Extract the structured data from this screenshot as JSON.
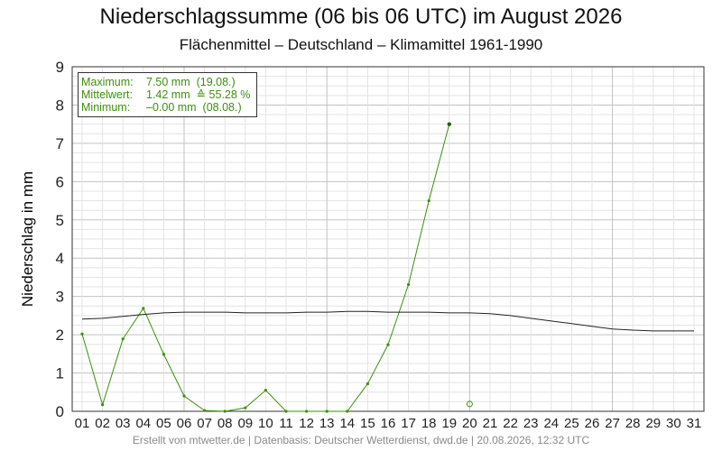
{
  "title": "Niederschlagssumme (06 bis 06 UTC) im August 2026",
  "subtitle": "Flächenmittel – Deutschland – Klimamittel 1961-1990",
  "footer": "Erstellt von mtwetter.de | Datenbasis: Deutscher Wetterdienst, dwd.de | 20.08.2026, 12:32 UTC",
  "infobox": {
    "max_label": "Maximum:",
    "max_value": "7.50 mm",
    "max_date": "(19.08.)",
    "mean_label": "Mittelwert:",
    "mean_value": "1.42 mm",
    "mean_pct": "≙ 55.28 %",
    "min_label": "Minimum:",
    "min_value": "–0.00 mm",
    "min_date": "(08.08.)"
  },
  "colors": {
    "observed": "#3d8f0e",
    "climate": "#222222",
    "grid_minor": "#e4e4e4",
    "grid_major": "#c2c2c2"
  },
  "chart_data": {
    "type": "line",
    "ylabel": "Niederschlag in mm",
    "ylim": [
      0,
      9
    ],
    "xlim": [
      1,
      31
    ],
    "x_ticks": [
      "01",
      "02",
      "03",
      "04",
      "05",
      "06",
      "07",
      "08",
      "09",
      "10",
      "11",
      "12",
      "13",
      "14",
      "15",
      "16",
      "17",
      "18",
      "19",
      "20",
      "21",
      "22",
      "23",
      "24",
      "25",
      "26",
      "27",
      "28",
      "29",
      "30",
      "31"
    ],
    "y_ticks": [
      0,
      1,
      2,
      3,
      4,
      5,
      6,
      7,
      8,
      9
    ],
    "grid": true,
    "series": [
      {
        "role": "observed",
        "x": [
          1,
          2,
          3,
          4,
          5,
          6,
          7,
          8,
          9,
          10,
          11,
          12,
          13,
          14,
          15,
          16,
          17,
          18,
          19
        ],
        "values": [
          2.02,
          0.17,
          1.89,
          2.69,
          1.49,
          0.4,
          0.02,
          0.0,
          0.09,
          0.55,
          0.0,
          0.0,
          0.0,
          0.0,
          0.72,
          1.74,
          3.31,
          5.5,
          7.5
        ]
      },
      {
        "role": "climate_mean",
        "x": [
          1,
          2,
          3,
          4,
          5,
          6,
          7,
          8,
          9,
          10,
          11,
          12,
          13,
          14,
          15,
          16,
          17,
          18,
          19,
          20,
          21,
          22,
          23,
          24,
          25,
          26,
          27,
          28,
          29,
          30,
          31
        ],
        "values": [
          2.41,
          2.43,
          2.48,
          2.53,
          2.57,
          2.59,
          2.59,
          2.59,
          2.57,
          2.57,
          2.57,
          2.59,
          2.59,
          2.61,
          2.61,
          2.59,
          2.59,
          2.59,
          2.57,
          2.57,
          2.55,
          2.5,
          2.43,
          2.36,
          2.29,
          2.22,
          2.15,
          2.12,
          2.1,
          2.1,
          2.1
        ]
      }
    ],
    "highlight": {
      "x": 20,
      "value": 0.19,
      "marker": "open-circle"
    }
  }
}
